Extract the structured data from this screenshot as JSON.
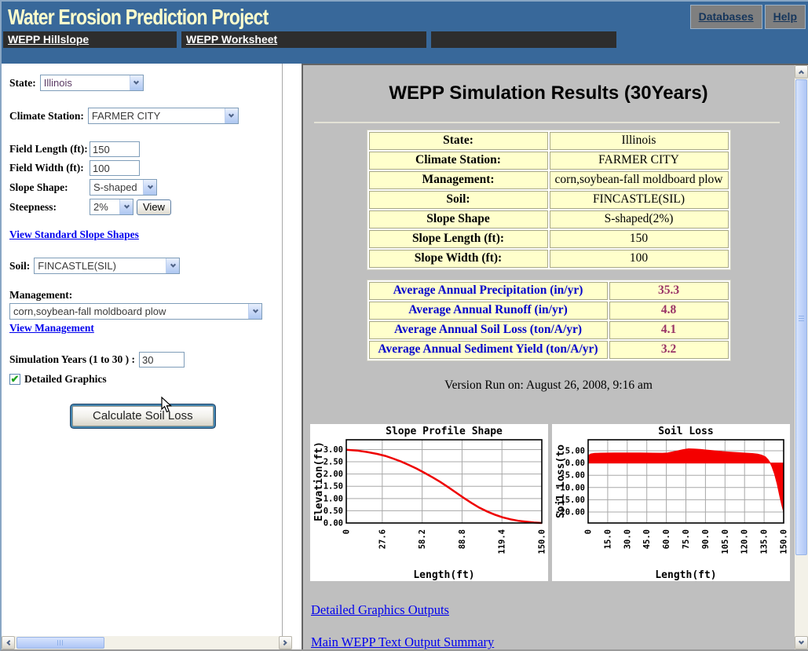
{
  "header": {
    "title": "Water Erosion Prediction Project",
    "nav_buttons": [
      {
        "label": "Databases"
      },
      {
        "label": "Help"
      }
    ],
    "tabs": [
      {
        "label": "WEPP Hillslope"
      },
      {
        "label": "WEPP Worksheet"
      },
      {
        "label": ""
      }
    ]
  },
  "form": {
    "state": {
      "label": "State:",
      "value": "Illinois"
    },
    "climate_station": {
      "label": "Climate Station:",
      "value": "FARMER CITY"
    },
    "field_length": {
      "label": "Field Length (ft):",
      "value": "150"
    },
    "field_width": {
      "label": "Field Width (ft):",
      "value": "100"
    },
    "slope_shape": {
      "label": "Slope Shape:",
      "value": "S-shaped"
    },
    "steepness": {
      "label": "Steepness:",
      "value": "2%"
    },
    "view_button": "View",
    "view_slope_link": "View Standard Slope Shapes",
    "soil": {
      "label": "Soil:",
      "value": "FINCASTLE(SIL)"
    },
    "management": {
      "label": "Management:",
      "value": "corn,soybean-fall moldboard plow"
    },
    "view_management_link": "View Management",
    "simulation_years": {
      "label": "Simulation Years (1 to 30 ) :",
      "value": "30"
    },
    "detailed_graphics": {
      "label": "Detailed Graphics",
      "checked": true
    },
    "calculate_button": "Calculate Soil Loss"
  },
  "results": {
    "title": "WEPP Simulation Results (30Years)",
    "summary_table": {
      "rows": [
        [
          "State:",
          "Illinois"
        ],
        [
          "Climate Station:",
          "FARMER CITY"
        ],
        [
          "Management:",
          "corn,soybean-fall moldboard plow"
        ],
        [
          "Soil:",
          "FINCASTLE(SIL)"
        ],
        [
          "Slope Shape",
          "S-shaped(2%)"
        ],
        [
          "Slope Length (ft):",
          "150"
        ],
        [
          "Slope Width (ft):",
          "100"
        ]
      ]
    },
    "averages_table": {
      "rows": [
        [
          "Average Annual Precipitation (in/yr)",
          "35.3"
        ],
        [
          "Average Annual Runoff (in/yr)",
          "4.8"
        ],
        [
          "Average Annual Soil Loss (ton/A/yr)",
          "4.1"
        ],
        [
          "Average Annual Sediment Yield (ton/A/yr)",
          "3.2"
        ]
      ]
    },
    "version_line": "Version Run on: August 26, 2008, 9:16 am",
    "links": [
      "Detailed Graphics Outputs",
      "Main WEPP Text Output Summary"
    ]
  },
  "chart_data": [
    {
      "type": "line",
      "title": "Slope Profile Shape",
      "xlabel": "Length(ft)",
      "ylabel": "Elevation(ft)",
      "xlim": [
        0,
        150
      ],
      "ylim": [
        0,
        3.4
      ],
      "grid": true,
      "line_color": "#EE0000",
      "xticks": {
        "values": [
          0,
          27.6,
          58.2,
          88.8,
          119.4,
          150
        ],
        "labels": [
          "0",
          "27.6",
          "58.2",
          "88.8",
          "119.4",
          "150.0"
        ]
      },
      "yticks": {
        "values": [
          0,
          0.5,
          1,
          1.5,
          2,
          2.5,
          3
        ],
        "labels": [
          "0.00",
          "0.50",
          "1.00",
          "1.50",
          "2.00",
          "2.50",
          "3.00"
        ]
      },
      "points": [
        [
          0,
          2.99
        ],
        [
          8,
          2.96
        ],
        [
          16,
          2.9
        ],
        [
          24,
          2.82
        ],
        [
          30,
          2.74
        ],
        [
          36,
          2.63
        ],
        [
          42,
          2.51
        ],
        [
          48,
          2.37
        ],
        [
          54,
          2.22
        ],
        [
          60,
          2.05
        ],
        [
          66,
          1.87
        ],
        [
          72,
          1.68
        ],
        [
          78,
          1.47
        ],
        [
          84,
          1.25
        ],
        [
          90,
          1.03
        ],
        [
          96,
          0.82
        ],
        [
          102,
          0.63
        ],
        [
          108,
          0.47
        ],
        [
          114,
          0.34
        ],
        [
          120,
          0.23
        ],
        [
          126,
          0.15
        ],
        [
          132,
          0.09
        ],
        [
          138,
          0.05
        ],
        [
          144,
          0.02
        ],
        [
          150,
          0
        ]
      ]
    },
    {
      "type": "area",
      "title": "Soil Loss",
      "xlabel": "Length(ft)",
      "ylabel": "Soil Loss(to",
      "xlim": [
        0,
        150
      ],
      "ylim": [
        -24.5,
        9.5
      ],
      "grid": true,
      "baseline": 0,
      "fill_color": "#F40000",
      "xticks": {
        "values": [
          0,
          15,
          30,
          45,
          60,
          75,
          90,
          105,
          120,
          135,
          150
        ],
        "labels": [
          "0",
          "15.0",
          "30.0",
          "45.0",
          "60.0",
          "75.0",
          "90.0",
          "105.0",
          "120.0",
          "135.0",
          "150.0"
        ]
      },
      "yticks": {
        "values": [
          5,
          0,
          -5,
          -10,
          -15,
          -20
        ],
        "labels": [
          "5.00",
          "0.00",
          "-5.00",
          "-10.00",
          "-15.00",
          "-20.00"
        ]
      },
      "points": [
        [
          0,
          3.0
        ],
        [
          2,
          3.7
        ],
        [
          5,
          3.95
        ],
        [
          10,
          4.05
        ],
        [
          20,
          4.1
        ],
        [
          30,
          4.1
        ],
        [
          40,
          4.1
        ],
        [
          50,
          4.05
        ],
        [
          57,
          4.0
        ],
        [
          61,
          4.15
        ],
        [
          65,
          4.55
        ],
        [
          69,
          5.0
        ],
        [
          73,
          5.5
        ],
        [
          77,
          5.8
        ],
        [
          81,
          5.75
        ],
        [
          86,
          5.55
        ],
        [
          91,
          5.3
        ],
        [
          97,
          5.0
        ],
        [
          103,
          4.7
        ],
        [
          109,
          4.45
        ],
        [
          115,
          4.25
        ],
        [
          121,
          4.05
        ],
        [
          126,
          3.9
        ],
        [
          130,
          3.65
        ],
        [
          133,
          3.25
        ],
        [
          136,
          2.5
        ],
        [
          138,
          1.4
        ],
        [
          139.5,
          0.2
        ],
        [
          141,
          -1.5
        ],
        [
          143,
          -4.5
        ],
        [
          145,
          -8.5
        ],
        [
          147,
          -13.5
        ],
        [
          148.5,
          -17
        ],
        [
          150,
          -20
        ]
      ]
    }
  ],
  "colors": {
    "header_blue": "#38689A",
    "tab_dark": "#2D2D2D",
    "panel_gray": "#BFBFBF",
    "cell_yellow": "#FFFFCC",
    "title_cream": "#FFFFCC",
    "link_blue": "#0000EE",
    "table_label_blue": "#0000CC",
    "value_maroon": "#993366",
    "chart_red": "#EE0000"
  }
}
